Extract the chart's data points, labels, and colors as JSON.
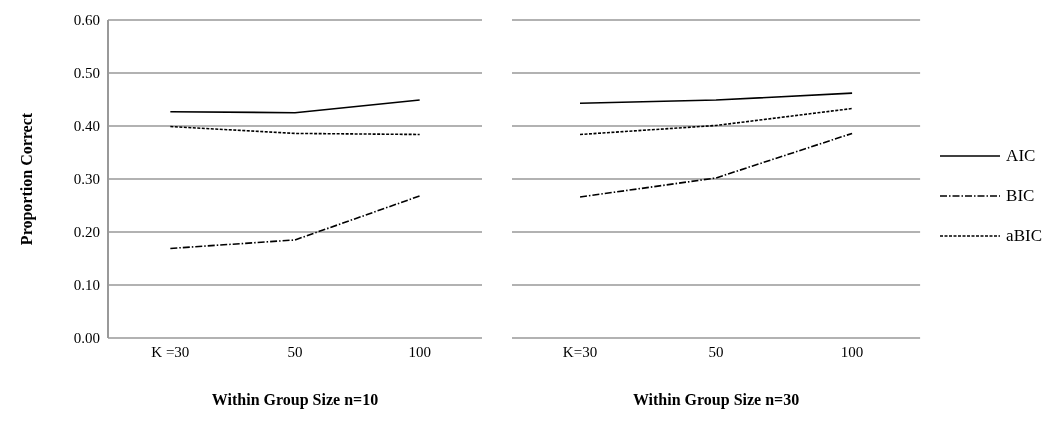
{
  "chart_data": [
    {
      "type": "line",
      "xlabel": "Within Group Size n=10",
      "ylabel": "Proportion Correct",
      "categories": [
        "K =30",
        "50",
        "100"
      ],
      "ylim": [
        0,
        0.6
      ],
      "yticks": [
        {
          "value": 0,
          "label": "0.00"
        },
        {
          "value": 0.1,
          "label": "0.10"
        },
        {
          "value": 0.2,
          "label": "0.20"
        },
        {
          "value": 0.3,
          "label": "0.30"
        },
        {
          "value": 0.4,
          "label": "0.40"
        },
        {
          "value": 0.5,
          "label": "0.50"
        },
        {
          "value": 0.6,
          "label": "0.60"
        }
      ],
      "grid": "y",
      "legend": false,
      "marker": "none",
      "series": [
        {
          "color": "#000000",
          "line_style": "solid",
          "values": [
            0.427,
            0.425,
            0.449
          ]
        },
        {
          "color": "#000000",
          "line_style": "dashdot",
          "values": [
            0.169,
            0.185,
            0.268
          ]
        },
        {
          "color": "#000000",
          "line_style": "dashed",
          "values": [
            0.399,
            0.386,
            0.384
          ]
        }
      ]
    },
    {
      "type": "line",
      "xlabel": "Within Group Size n=30",
      "categories": [
        "K=30",
        "50",
        "100"
      ],
      "ylim": [
        0,
        0.6
      ],
      "yticks": [
        0,
        0.1,
        0.2,
        0.3,
        0.4,
        0.5,
        0.6
      ],
      "tick_labels": "x",
      "grid": "y",
      "legend": "right",
      "marker": "none",
      "series": [
        {
          "name": "AIC",
          "color": "#000000",
          "line_style": "solid",
          "values": [
            0.443,
            0.449,
            0.462
          ]
        },
        {
          "name": "BIC",
          "color": "#000000",
          "line_style": "dashdot",
          "values": [
            0.266,
            0.302,
            0.386
          ]
        },
        {
          "name": "aBIC",
          "color": "#000000",
          "line_style": "dashed",
          "values": [
            0.384,
            0.401,
            0.433
          ]
        }
      ]
    }
  ]
}
